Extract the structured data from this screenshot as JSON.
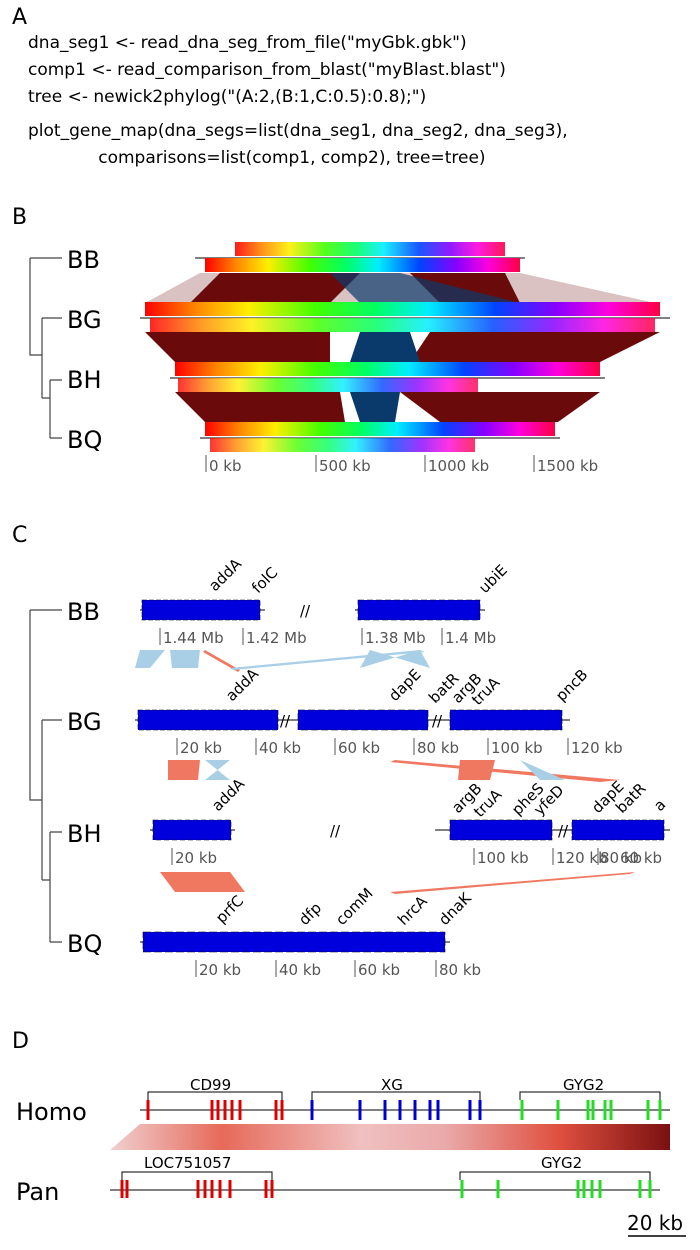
{
  "panelA": {
    "letter": "A",
    "code": [
      "dna_seg1 <- read_dna_seg_from_file(\"myGbk.gbk\")",
      "comp1 <- read_comparison_from_blast(\"myBlast.blast\")",
      "tree <- newick2phylog(\"(A:2,(B:1,C:0.5):0.8);\")",
      "plot_gene_map(dna_segs=list(dna_seg1, dna_seg2, dna_seg3),",
      "             comparisons=list(comp1, comp2), tree=tree)"
    ]
  },
  "panelB": {
    "letter": "B",
    "tips": [
      "BB",
      "BG",
      "BH",
      "BQ"
    ],
    "scale_labels": [
      "0 kb",
      "500 kb",
      "1000 kb",
      "1500 kb"
    ]
  },
  "panelC": {
    "letter": "C",
    "tips": [
      "BB",
      "BG",
      "BH",
      "BQ"
    ],
    "rows": [
      {
        "genes": [
          "addA",
          "folC",
          "ubiE"
        ],
        "ticks": [
          "1.44 Mb",
          "1.42 Mb",
          "1.38 Mb",
          "1.4 Mb"
        ]
      },
      {
        "genes": [
          "addA",
          "dapE",
          "batR",
          "argB",
          "truA",
          "pncB"
        ],
        "ticks": [
          "20 kb",
          "40 kb",
          "60 kb",
          "80 kb",
          "100 kb",
          "120 kb"
        ]
      },
      {
        "genes": [
          "addA",
          "argB",
          "truA",
          "pheS",
          "yfeD",
          "dapE",
          "batR",
          "a"
        ],
        "ticks": [
          "20 kb",
          "100 kb",
          "120 kb",
          "80 kb",
          "60 kb"
        ]
      },
      {
        "genes": [
          "prfC",
          "dfp",
          "comM",
          "hrcA",
          "dnaK"
        ],
        "ticks": [
          "20 kb",
          "40 kb",
          "60 kb",
          "80 kb"
        ]
      }
    ]
  },
  "panelD": {
    "letter": "D",
    "species": [
      "Homo",
      "Pan"
    ],
    "homo_genes": [
      "CD99",
      "XG",
      "GYG2"
    ],
    "pan_genes": [
      "LOC751057",
      "GYG2"
    ],
    "scale_label": "20 kb"
  },
  "colors": {
    "gene_blue": "#0000dd",
    "comparison_red": "#6b0a0a",
    "comparison_inverted": "#0a3a6b",
    "light_blue": "#a9cfe6",
    "salmon": "#f07860",
    "homo_red": "#dd0000",
    "homo_blue": "#0000cc",
    "homo_green": "#22dd22"
  }
}
